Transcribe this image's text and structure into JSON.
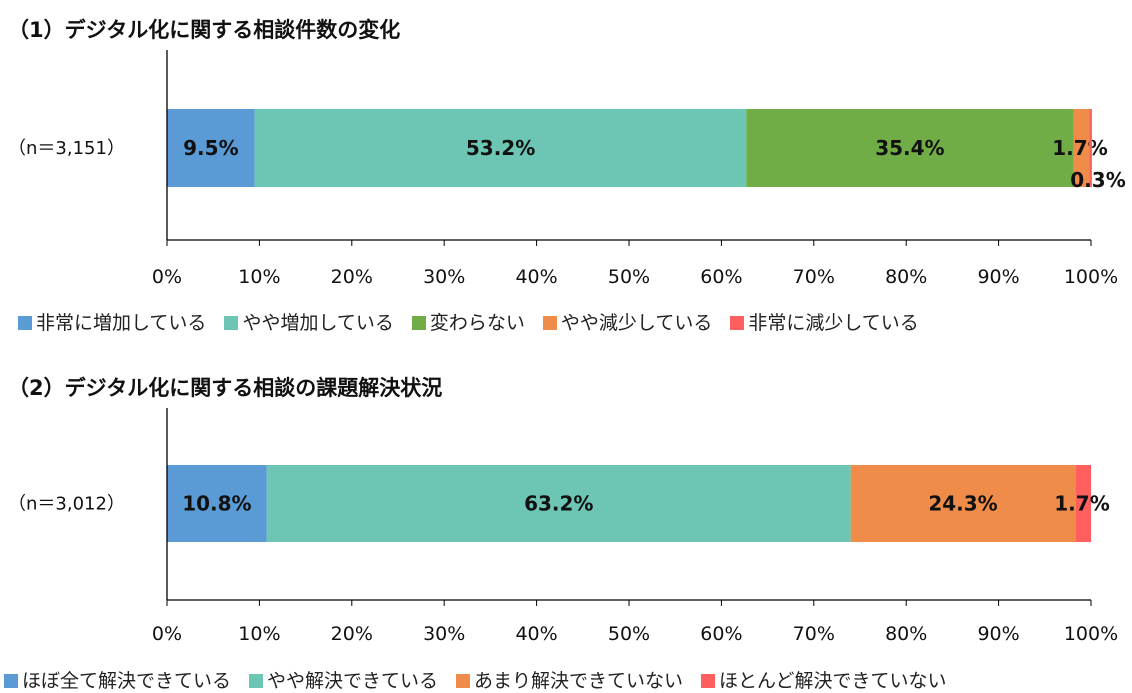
{
  "chart_data": [
    {
      "type": "bar",
      "orientation": "horizontal",
      "stacked": true,
      "title": "（1）デジタル化に関する相談件数の変化",
      "categories": [
        "（n＝3,151）"
      ],
      "series": [
        {
          "name": "非常に増加している",
          "values": [
            9.5
          ],
          "color": "#5B9BD5"
        },
        {
          "name": "やや増加している",
          "values": [
            53.2
          ],
          "color": "#6CC6B3"
        },
        {
          "name": "変わらない",
          "values": [
            35.4
          ],
          "color": "#70AD47"
        },
        {
          "name": "やや減少している",
          "values": [
            1.7
          ],
          "color": "#F08C4A"
        },
        {
          "name": "非常に減少している",
          "values": [
            0.3
          ],
          "color": "#FF5F5F"
        }
      ],
      "data_labels": [
        "9.5%",
        "53.2%",
        "35.4%",
        "1.7%",
        "0.3%"
      ],
      "xlim": [
        0,
        100
      ],
      "ticks": [
        "0%",
        "10%",
        "20%",
        "30%",
        "40%",
        "50%",
        "60%",
        "70%",
        "80%",
        "90%",
        "100%"
      ],
      "legend": "bottom"
    },
    {
      "type": "bar",
      "orientation": "horizontal",
      "stacked": true,
      "title": "（2）デジタル化に関する相談の課題解決状況",
      "categories": [
        "（n＝3,012）"
      ],
      "series": [
        {
          "name": "ほぼ全て解決できている",
          "values": [
            10.8
          ],
          "color": "#5B9BD5"
        },
        {
          "name": "やや解決できている",
          "values": [
            63.2
          ],
          "color": "#6CC6B3"
        },
        {
          "name": "あまり解決できていない",
          "values": [
            24.3
          ],
          "color": "#F08C4A"
        },
        {
          "name": "ほとんど解決できていない",
          "values": [
            1.7
          ],
          "color": "#FF5F5F"
        }
      ],
      "data_labels": [
        "10.8%",
        "63.2%",
        "24.3%",
        "1.7%"
      ],
      "xlim": [
        0,
        100
      ],
      "ticks": [
        "0%",
        "10%",
        "20%",
        "30%",
        "40%",
        "50%",
        "60%",
        "70%",
        "80%",
        "90%",
        "100%"
      ],
      "legend": "bottom"
    }
  ]
}
